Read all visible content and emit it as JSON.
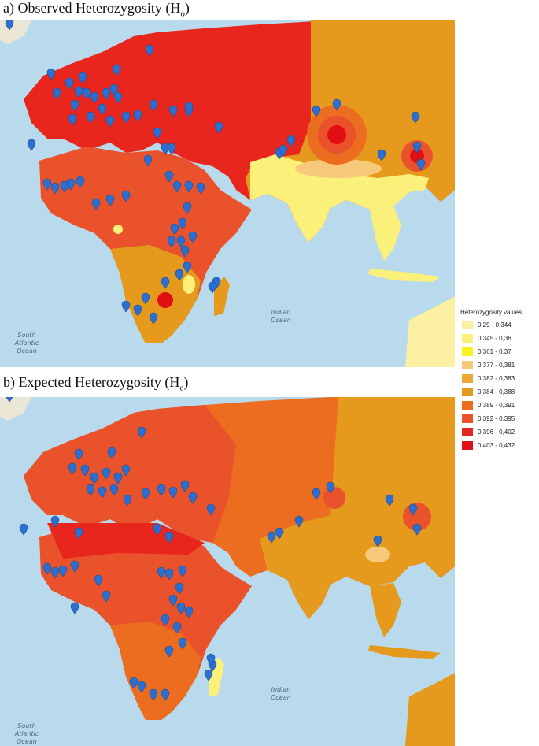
{
  "panels": [
    {
      "id": "observed",
      "title_prefix": "a) Observed Heterozygosity (H",
      "title_sub": "o",
      "title_suffix": ")"
    },
    {
      "id": "expected",
      "title_prefix": "b) Expected Heterozygosity (H",
      "title_sub": "e",
      "title_suffix": ")"
    }
  ],
  "ocean_labels": {
    "indian_1": "Indian",
    "indian_2": "Ocean",
    "south_1": "South",
    "south_2": "Atlantic",
    "south_3": "Ocean"
  },
  "legend": {
    "title": "Heterozygosity values",
    "classes": [
      {
        "label": "0,29 - 0,344",
        "color": "#fbf0a2"
      },
      {
        "label": "0,345 - 0,36",
        "color": "#fbf07a"
      },
      {
        "label": "0,361 - 0,37",
        "color": "#fbf124"
      },
      {
        "label": "0,377 - 0,381",
        "color": "#f7c97a"
      },
      {
        "label": "0,382 - 0,383",
        "color": "#eea838"
      },
      {
        "label": "0,384 - 0,388",
        "color": "#e59a1d"
      },
      {
        "label": "0,389 - 0,391",
        "color": "#ec6d20"
      },
      {
        "label": "0,392 - 0,395",
        "color": "#e9522a"
      },
      {
        "label": "0,396 - 0,402",
        "color": "#e8261e"
      },
      {
        "label": "0,403 - 0,432",
        "color": "#e10f14"
      }
    ]
  },
  "colors": {
    "ocean": "#b9d9ec",
    "land_other": "#ece6d6",
    "marker": "#2c6fce"
  }
}
